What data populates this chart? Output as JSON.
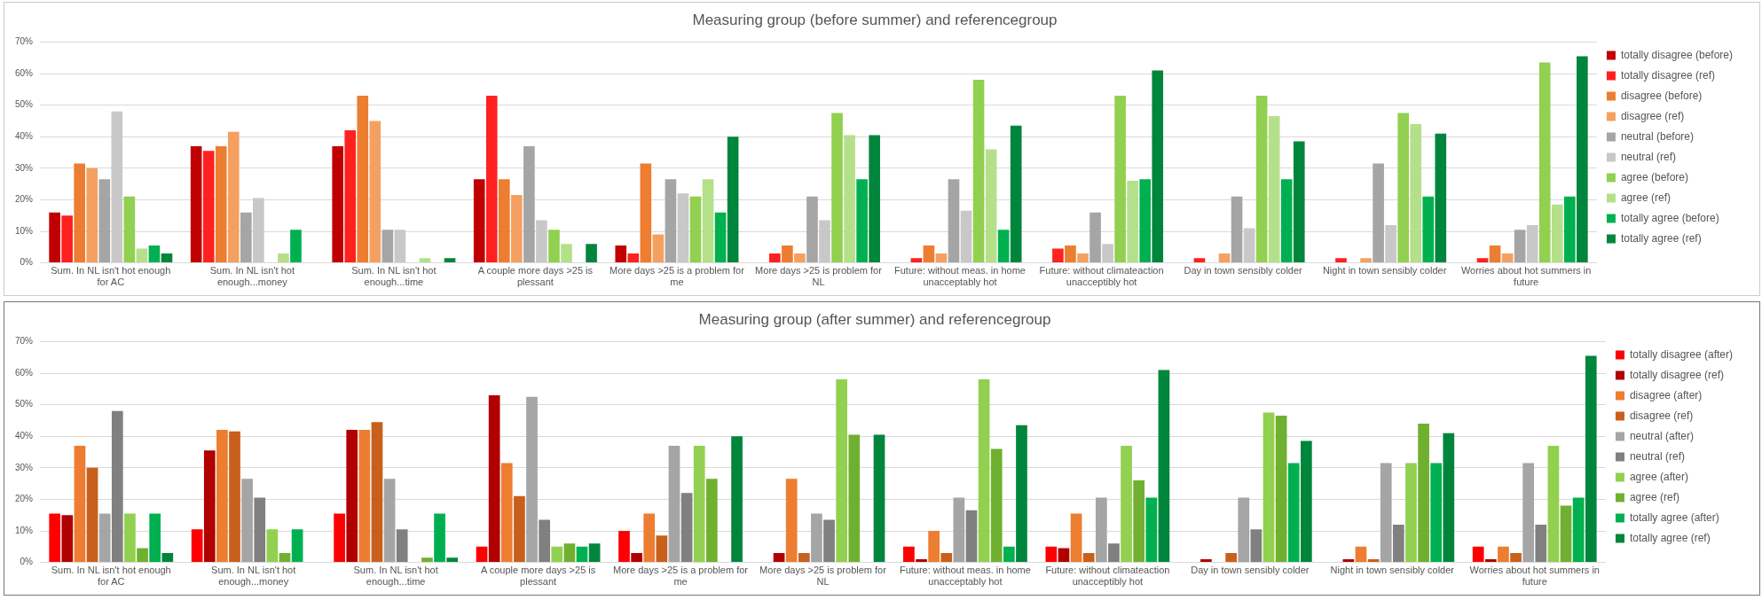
{
  "chart_data": [
    {
      "type": "bar",
      "title": "Measuring group (before summer) and referencegroup",
      "categories": [
        "Sum. In NL isn't hot enough for AC",
        "Sum. In NL isn't hot enough...money",
        "Sum. In NL isn't hot enough...time",
        "A couple more days >25 is plessant",
        "More days >25 is a problem for me",
        "More days >25 is problem for NL",
        "Future: without meas. in home unacceptably hot",
        "Future: without climateaction unacceptibly hot",
        "Day in town sensibly colder",
        "Night in town sensibly colder",
        "Worries about hot summers in future"
      ],
      "series": [
        {
          "name": "totally disagree (before)",
          "color": "#c00000",
          "values": [
            16,
            37,
            37,
            26.5,
            5.5,
            0,
            0,
            0,
            0,
            0,
            0
          ]
        },
        {
          "name": "totally disagree (ref)",
          "color": "#ff2020",
          "values": [
            15,
            35.5,
            42,
            53,
            3,
            3,
            1.5,
            4.5,
            1.5,
            1.5,
            1.5
          ]
        },
        {
          "name": "disagree (before)",
          "color": "#ed7d31",
          "values": [
            31.5,
            37,
            53,
            26.5,
            31.5,
            5.5,
            5.5,
            5.5,
            0,
            0,
            5.5
          ]
        },
        {
          "name": "disagree (ref)",
          "color": "#f4a060",
          "values": [
            30,
            41.5,
            45,
            21.5,
            9,
            3,
            3,
            3,
            3,
            1.5,
            3
          ]
        },
        {
          "name": "neutral (before)",
          "color": "#a5a5a5",
          "values": [
            26.5,
            16,
            10.5,
            37,
            26.5,
            21,
            26.5,
            16,
            21,
            31.5,
            10.5
          ]
        },
        {
          "name": "neutral (ref)",
          "color": "#c8c8c8",
          "values": [
            48,
            20.5,
            10.5,
            13.5,
            22,
            13.5,
            16.5,
            6,
            11,
            12,
            12
          ]
        },
        {
          "name": "agree (before)",
          "color": "#92d050",
          "values": [
            21,
            0,
            0,
            10.5,
            21,
            47.5,
            58,
            53,
            53,
            47.5,
            63.5
          ]
        },
        {
          "name": "agree (ref)",
          "color": "#b5e08a",
          "values": [
            4.5,
            3,
            1.5,
            6,
            26.5,
            40.5,
            36,
            26,
            46.5,
            44,
            18.5
          ]
        },
        {
          "name": "totally agree (before)",
          "color": "#00b050",
          "values": [
            5.5,
            10.5,
            0,
            0,
            16,
            26.5,
            10.5,
            26.5,
            26.5,
            21,
            21
          ]
        },
        {
          "name": "totally agree (ref)",
          "color": "#00863c",
          "values": [
            3,
            0,
            1.5,
            6,
            40,
            40.5,
            43.5,
            61,
            38.5,
            41,
            65.5
          ]
        }
      ],
      "ylim": [
        0,
        70
      ],
      "yticks": [
        {
          "value": 0,
          "label": "0%"
        },
        {
          "value": 10,
          "label": "10%"
        },
        {
          "value": 20,
          "label": "20%"
        },
        {
          "value": 30,
          "label": "30%"
        },
        {
          "value": 40,
          "label": "40%"
        },
        {
          "value": 50,
          "label": "50%"
        },
        {
          "value": 60,
          "label": "60%"
        },
        {
          "value": 70,
          "label": "70%"
        }
      ],
      "grid": "y",
      "legend": "right"
    },
    {
      "type": "bar",
      "title": "Measuring group (after summer) and referencegroup",
      "categories": [
        "Sum. In NL isn't hot enough for AC",
        "Sum. In NL isn't hot enough...money",
        "Sum. In NL isn't hot enough...time",
        "A couple more days >25 is plessant",
        "More days >25 is a problem for me",
        "More days >25 is problem for NL",
        "Future: without meas. in home unacceptably hot",
        "Future: without climateaction unacceptibly hot",
        "Day in town sensibly colder",
        "Night in town sensibly colder",
        "Worries about hot summers in future"
      ],
      "series": [
        {
          "name": "totally disagree (after)",
          "color": "#ff0000",
          "values": [
            15.5,
            10.5,
            15.5,
            5,
            10,
            0,
            5,
            5,
            0,
            0,
            5
          ]
        },
        {
          "name": "totally disagree (ref)",
          "color": "#b00000",
          "values": [
            15,
            35.5,
            42,
            53,
            3,
            3,
            1,
            4.5,
            1,
            1,
            1
          ]
        },
        {
          "name": "disagree (after)",
          "color": "#ed7d31",
          "values": [
            37,
            42,
            42,
            31.5,
            15.5,
            26.5,
            10,
            15.5,
            0,
            5,
            5
          ]
        },
        {
          "name": "disagree (ref)",
          "color": "#c8601c",
          "values": [
            30,
            41.5,
            44.5,
            21,
            8.5,
            3,
            3,
            3,
            3,
            1,
            3
          ]
        },
        {
          "name": "neutral (after)",
          "color": "#a5a5a5",
          "values": [
            15.5,
            26.5,
            26.5,
            52.5,
            37,
            15.5,
            20.5,
            20.5,
            20.5,
            31.5,
            31.5
          ]
        },
        {
          "name": "neutral (ref)",
          "color": "#808080",
          "values": [
            48,
            20.5,
            10.5,
            13.5,
            22,
            13.5,
            16.5,
            6,
            10.5,
            12,
            12
          ]
        },
        {
          "name": "agree (after)",
          "color": "#92d050",
          "values": [
            15.5,
            10.5,
            0,
            5,
            37,
            58,
            58,
            37,
            47.5,
            31.5,
            37
          ]
        },
        {
          "name": "agree (ref)",
          "color": "#70b030",
          "values": [
            4.5,
            3,
            1.5,
            6,
            26.5,
            40.5,
            36,
            26,
            46.5,
            44,
            18
          ]
        },
        {
          "name": "totally agree (after)",
          "color": "#00b050",
          "values": [
            15.5,
            10.5,
            15.5,
            5,
            0,
            0,
            5,
            20.5,
            31.5,
            31.5,
            20.5
          ]
        },
        {
          "name": "totally agree (ref)",
          "color": "#00863c",
          "values": [
            3,
            0,
            1.5,
            6,
            40,
            40.5,
            43.5,
            61,
            38.5,
            41,
            65.5
          ]
        }
      ],
      "ylim": [
        0,
        70
      ],
      "yticks": [
        {
          "value": 0,
          "label": "0%"
        },
        {
          "value": 10,
          "label": "10%"
        },
        {
          "value": 20,
          "label": "20%"
        },
        {
          "value": 30,
          "label": "30%"
        },
        {
          "value": 40,
          "label": "40%"
        },
        {
          "value": 50,
          "label": "50%"
        },
        {
          "value": 60,
          "label": "60%"
        },
        {
          "value": 70,
          "label": "70%"
        }
      ],
      "grid": "y",
      "legend": "right"
    }
  ]
}
